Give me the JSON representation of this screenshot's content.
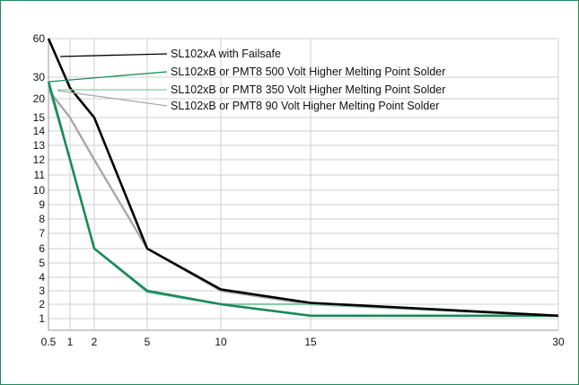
{
  "chart_data": {
    "type": "line",
    "title": "",
    "xlabel": "",
    "ylabel": "",
    "x_ticks": [
      "0.5",
      "1",
      "2",
      "5",
      "10",
      "15",
      "30"
    ],
    "y_ticks": [
      "1",
      "2",
      "3",
      "4",
      "5",
      "6",
      "7",
      "8",
      "9",
      "10",
      "11",
      "12",
      "13",
      "14",
      "15",
      "20",
      "30",
      "60"
    ],
    "grid": true,
    "legend_placement": "top-right, with leader lines",
    "series": [
      {
        "name": "SL102xA with Failsafe",
        "color": "#000000",
        "points": [
          [
            0.5,
            60
          ],
          [
            1,
            25
          ],
          [
            2,
            15
          ],
          [
            5,
            6
          ],
          [
            10,
            3.1
          ],
          [
            15,
            2.1
          ],
          [
            30,
            1.2
          ]
        ]
      },
      {
        "name": "SL102xB or PMT8 500 Volt Higher Melting Point Solder",
        "color": "#1a8a5a",
        "points": [
          [
            0.5,
            28
          ],
          [
            1,
            12
          ],
          [
            2,
            6
          ],
          [
            5,
            3
          ],
          [
            10,
            2
          ],
          [
            15,
            1.2
          ],
          [
            30,
            1.2
          ]
        ]
      },
      {
        "name": "SL102xB or PMT8 350 Volt Higher Melting Point Solder",
        "color": "#8cc8a8",
        "points": [
          [
            0.5,
            26
          ],
          [
            1,
            12
          ],
          [
            2,
            6
          ],
          [
            5,
            2.9
          ],
          [
            10,
            2
          ],
          [
            15,
            2
          ],
          [
            30,
            1.2
          ]
        ]
      },
      {
        "name": "SL102xB or PMT8 90 Volt Higher Melting Point Solder",
        "color": "#a8a8a8",
        "points": [
          [
            0.5,
            24
          ],
          [
            1,
            15
          ],
          [
            2,
            12
          ],
          [
            5,
            6
          ],
          [
            10,
            3
          ],
          [
            15,
            2
          ],
          [
            30,
            1.2
          ]
        ]
      }
    ]
  }
}
